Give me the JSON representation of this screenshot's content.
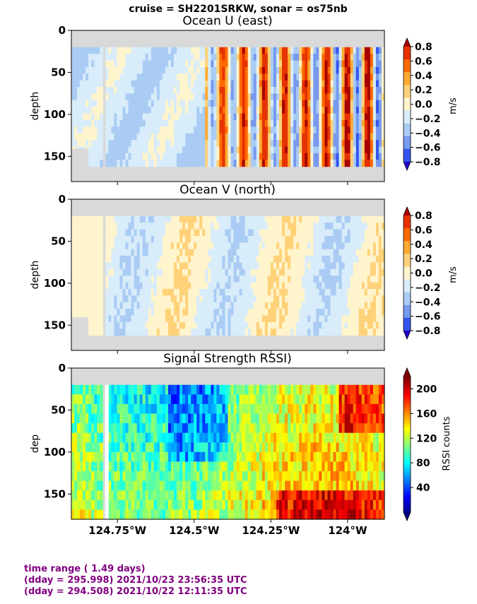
{
  "suptitle": "cruise = SH2201SRKW,  sonar = os75nb",
  "footer": {
    "line1": "time range ( 1.49 days)",
    "line2": "(dday = 295.998) 2021/10/23 23:56:35 UTC",
    "line3": "(dday = 294.508) 2021/10/22 12:11:35 UTC"
  },
  "colors": {
    "no_data": "#d9d9d9",
    "footer_text": "#800080"
  },
  "chart_data": [
    {
      "type": "heatmap",
      "title": "Ocean U (east)",
      "ylabel": "depth",
      "ylim": [
        180,
        0
      ],
      "yticks": [
        "0",
        "50",
        "100",
        "150"
      ],
      "colorbar": {
        "label": "m/s",
        "range": [
          -0.8,
          0.8
        ],
        "ticks": [
          "0.8",
          "0.6",
          "0.4",
          "0.2",
          "0.0",
          "−0.2",
          "−0.4",
          "−0.6",
          "−0.8"
        ],
        "levels": [
          "#2200cc",
          "#3355ee",
          "#7799ee",
          "#aaccf4",
          "#d8ecfa",
          "#fff4cc",
          "#ffd27a",
          "#ffaa33",
          "#ff6a00",
          "#e63300",
          "#a80000"
        ]
      },
      "depth_range": [
        20,
        162
      ],
      "description": "eastward current; weak negative in west, strong alternating bands east of 124.45W"
    },
    {
      "type": "heatmap",
      "title": "Ocean V (north)",
      "ylabel": "depth",
      "ylim": [
        180,
        0
      ],
      "yticks": [
        "0",
        "50",
        "100",
        "150"
      ],
      "colorbar": {
        "label": "m/s",
        "range": [
          -0.8,
          0.8
        ],
        "ticks": [
          "0.8",
          "0.6",
          "0.4",
          "0.2",
          "0.0",
          "−0.2",
          "−0.4",
          "−0.6",
          "−0.8"
        ],
        "levels": [
          "#2200cc",
          "#3355ee",
          "#7799ee",
          "#aaccf4",
          "#d8ecfa",
          "#fff4cc",
          "#ffd27a",
          "#ffaa33",
          "#ff6a00",
          "#e63300",
          "#a80000"
        ]
      },
      "depth_range": [
        20,
        162
      ]
    },
    {
      "type": "heatmap",
      "title": "Signal Strength RSSI)",
      "ylabel": "dep",
      "ylim": [
        180,
        0
      ],
      "yticks": [
        "0",
        "50",
        "100",
        "150"
      ],
      "xlabel": "",
      "xticks": [
        "124.75°W",
        "124.5°W",
        "124.25°W",
        "124°W"
      ],
      "xtick_values": [
        -124.75,
        -124.5,
        -124.25,
        -124.0
      ],
      "xlim": [
        -124.9,
        -123.88
      ],
      "colorbar": {
        "label": "RSSI counts",
        "range": [
          0,
          220
        ],
        "ticks": [
          "200",
          "160",
          "120",
          "80",
          "40"
        ],
        "tick_values": [
          200,
          160,
          120,
          80,
          40
        ]
      },
      "depth_range": [
        20,
        180
      ]
    }
  ]
}
